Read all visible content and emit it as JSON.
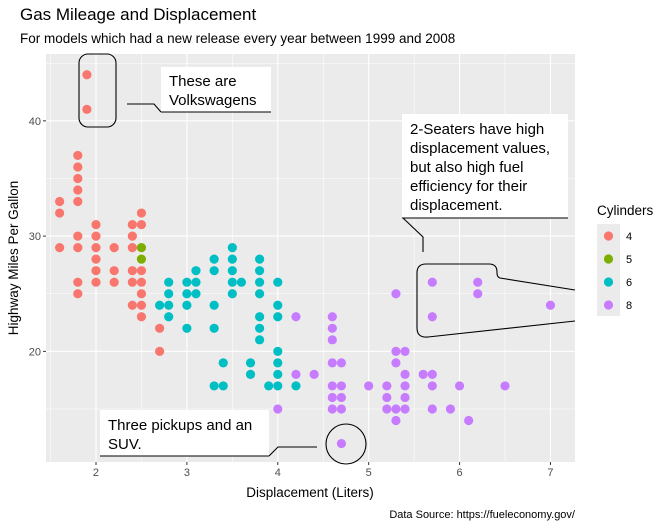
{
  "chart_data": {
    "type": "scatter",
    "title": "Gas Mileage and Displacement",
    "subtitle": "For models which had a new release every year between 1999 and 2008",
    "xlabel": "Displacement (Liters)",
    "ylabel": "Highway Miles Per Gallon",
    "caption": "Data Source: https://fueleconomy.gov/",
    "xlim": [
      1.45,
      7.27
    ],
    "ylim": [
      10.4,
      45.8
    ],
    "xticks": [
      2,
      3,
      4,
      5,
      6,
      7
    ],
    "yticks": [
      20,
      30,
      40
    ],
    "grid": true,
    "legend": {
      "title": "Cylinders",
      "position": "right",
      "entries": [
        {
          "label": "4",
          "color": "#F8766D"
        },
        {
          "label": "5",
          "color": "#7CAE00"
        },
        {
          "label": "6",
          "color": "#00BFC4"
        },
        {
          "label": "8",
          "color": "#C77CFF"
        }
      ]
    },
    "series": [
      {
        "name": "4",
        "color": "#F8766D",
        "points": [
          [
            1.9,
            44
          ],
          [
            1.9,
            41
          ],
          [
            1.6,
            33
          ],
          [
            1.6,
            32
          ],
          [
            1.6,
            29
          ],
          [
            1.8,
            37
          ],
          [
            1.8,
            36
          ],
          [
            1.8,
            35
          ],
          [
            1.8,
            34
          ],
          [
            1.8,
            33
          ],
          [
            1.8,
            30
          ],
          [
            1.8,
            29
          ],
          [
            1.8,
            26
          ],
          [
            1.8,
            25
          ],
          [
            2.0,
            31
          ],
          [
            2.0,
            30
          ],
          [
            2.0,
            29
          ],
          [
            2.0,
            28
          ],
          [
            2.0,
            27
          ],
          [
            2.0,
            26
          ],
          [
            2.2,
            29
          ],
          [
            2.2,
            27
          ],
          [
            2.2,
            26
          ],
          [
            2.4,
            31
          ],
          [
            2.4,
            30
          ],
          [
            2.4,
            29
          ],
          [
            2.4,
            27
          ],
          [
            2.4,
            26
          ],
          [
            2.4,
            24
          ],
          [
            2.5,
            32
          ],
          [
            2.5,
            31
          ],
          [
            2.5,
            27
          ],
          [
            2.5,
            26
          ],
          [
            2.5,
            25
          ],
          [
            2.5,
            24
          ],
          [
            2.5,
            23
          ],
          [
            2.7,
            22
          ],
          [
            2.7,
            20
          ]
        ]
      },
      {
        "name": "5",
        "color": "#7CAE00",
        "points": [
          [
            2.5,
            29
          ],
          [
            2.5,
            28
          ]
        ]
      },
      {
        "name": "6",
        "color": "#00BFC4",
        "points": [
          [
            2.7,
            24
          ],
          [
            2.8,
            26
          ],
          [
            2.8,
            25
          ],
          [
            2.8,
            24
          ],
          [
            2.8,
            23
          ],
          [
            3.0,
            26
          ],
          [
            3.0,
            25
          ],
          [
            3.0,
            24
          ],
          [
            3.0,
            22
          ],
          [
            3.1,
            27
          ],
          [
            3.1,
            26
          ],
          [
            3.1,
            25
          ],
          [
            3.3,
            28
          ],
          [
            3.3,
            27
          ],
          [
            3.3,
            24
          ],
          [
            3.3,
            22
          ],
          [
            3.3,
            17
          ],
          [
            3.4,
            19
          ],
          [
            3.4,
            17
          ],
          [
            3.5,
            29
          ],
          [
            3.5,
            28
          ],
          [
            3.5,
            27
          ],
          [
            3.5,
            26
          ],
          [
            3.5,
            25
          ],
          [
            3.6,
            26
          ],
          [
            3.7,
            19
          ],
          [
            3.7,
            18
          ],
          [
            3.8,
            28
          ],
          [
            3.8,
            27
          ],
          [
            3.8,
            26
          ],
          [
            3.8,
            25
          ],
          [
            3.8,
            23
          ],
          [
            3.8,
            22
          ],
          [
            3.8,
            21
          ],
          [
            3.9,
            17
          ],
          [
            4.0,
            26
          ],
          [
            4.0,
            24
          ],
          [
            4.0,
            23
          ],
          [
            4.0,
            20
          ],
          [
            4.0,
            19
          ],
          [
            4.0,
            18
          ],
          [
            4.0,
            17
          ],
          [
            4.2,
            17
          ]
        ]
      },
      {
        "name": "8",
        "color": "#C77CFF",
        "points": [
          [
            4.0,
            15
          ],
          [
            4.2,
            23
          ],
          [
            4.2,
            18
          ],
          [
            4.4,
            18
          ],
          [
            4.6,
            23
          ],
          [
            4.6,
            22
          ],
          [
            4.6,
            21
          ],
          [
            4.6,
            19
          ],
          [
            4.6,
            17
          ],
          [
            4.6,
            16
          ],
          [
            4.6,
            15
          ],
          [
            4.7,
            19
          ],
          [
            4.7,
            17
          ],
          [
            4.7,
            16
          ],
          [
            4.7,
            15
          ],
          [
            4.7,
            12
          ],
          [
            5.0,
            17
          ],
          [
            5.2,
            17
          ],
          [
            5.2,
            16
          ],
          [
            5.2,
            15
          ],
          [
            5.3,
            25
          ],
          [
            5.3,
            20
          ],
          [
            5.3,
            19
          ],
          [
            5.3,
            15
          ],
          [
            5.3,
            14
          ],
          [
            5.4,
            20
          ],
          [
            5.4,
            18
          ],
          [
            5.4,
            17
          ],
          [
            5.4,
            16
          ],
          [
            5.4,
            15
          ],
          [
            5.6,
            18
          ],
          [
            5.7,
            26
          ],
          [
            5.7,
            23
          ],
          [
            5.7,
            18
          ],
          [
            5.7,
            17
          ],
          [
            5.7,
            15
          ],
          [
            5.9,
            15
          ],
          [
            6.0,
            17
          ],
          [
            6.1,
            14
          ],
          [
            6.2,
            26
          ],
          [
            6.2,
            25
          ],
          [
            6.5,
            17
          ],
          [
            7.0,
            24
          ]
        ]
      }
    ],
    "annotations": [
      {
        "id": "volkswagens",
        "text_lines": [
          "These are",
          "Volkswagens"
        ],
        "marks": "rounded box around the two 1.9 L points (hwy 44, 41)"
      },
      {
        "id": "two-seaters",
        "text_lines": [
          "2-Seaters have high",
          "displacement values,",
          "but also high fuel",
          "efficiency for their",
          "displacement."
        ],
        "marks": "hull around the 5.7–7.0 L, 23–26 hwy points"
      },
      {
        "id": "pickups",
        "text_lines": [
          "Three pickups and an",
          "SUV."
        ],
        "marks": "circle around the 4.7 L, 12 hwy point"
      }
    ]
  }
}
